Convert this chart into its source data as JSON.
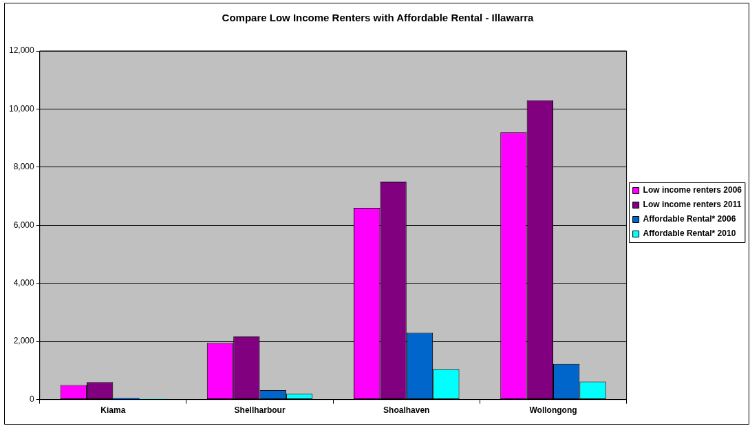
{
  "chart_data": {
    "type": "bar",
    "title": "Compare Low Income Renters with Affordable Rental - Illawarra",
    "categories": [
      "Kiama",
      "Shellharbour",
      "Shoalhaven",
      "Wollongong"
    ],
    "series": [
      {
        "name": "Low income renters 2006",
        "color": "#ff00ff",
        "values": [
          500,
          1950,
          6600,
          9200
        ]
      },
      {
        "name": "Low income renters 2011",
        "color": "#800080",
        "values": [
          600,
          2170,
          7500,
          10300
        ]
      },
      {
        "name": "Affordable Rental* 2006",
        "color": "#0066cc",
        "values": [
          60,
          320,
          2300,
          1230
        ]
      },
      {
        "name": "Affordable Rental* 2010",
        "color": "#00ffff",
        "values": [
          30,
          200,
          1050,
          620
        ]
      }
    ],
    "ylim": [
      0,
      12000
    ],
    "yticks": [
      0,
      {
        "value": 2000,
        "label": "2,000"
      },
      {
        "value": 4000,
        "label": "4,000"
      },
      {
        "value": 6000,
        "label": "6,000"
      },
      {
        "value": 8000,
        "label": "8,000"
      },
      {
        "value": 10000,
        "label": "10,000"
      },
      {
        "value": 12000,
        "label": "12,000"
      }
    ],
    "grid": "y",
    "legend": "right"
  }
}
